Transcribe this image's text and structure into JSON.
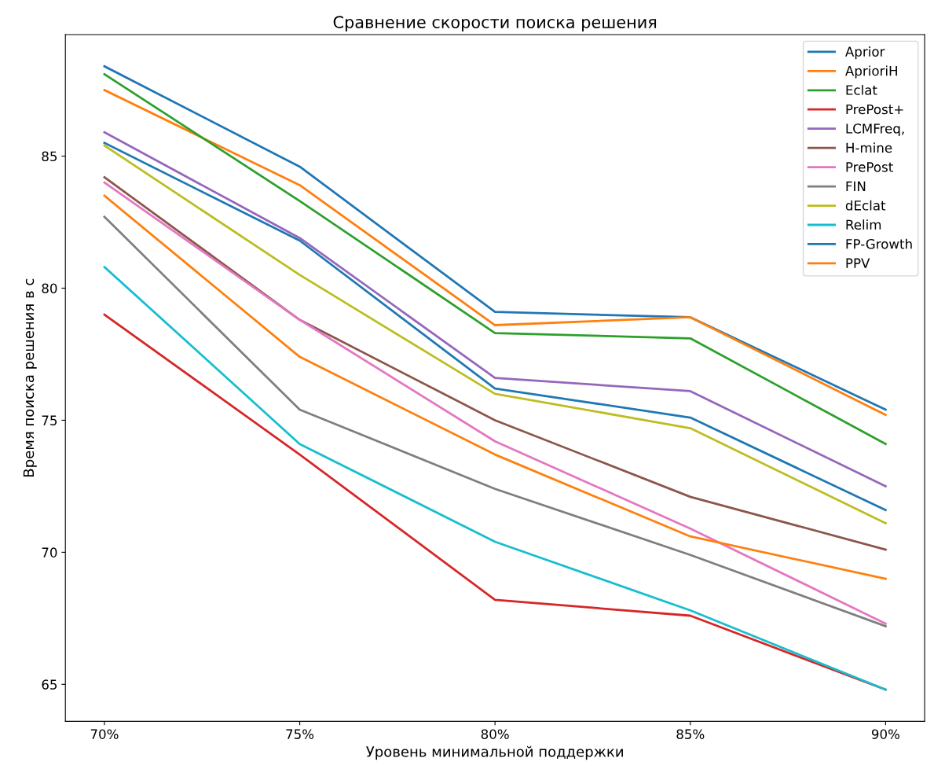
{
  "chart_data": {
    "type": "line",
    "title": "Сравнение скорости поиска решения",
    "xlabel": "Уровень минимальной поддержки",
    "ylabel": "Время поиска решения в с",
    "categories": [
      "70%",
      "75%",
      "80%",
      "85%",
      "90%"
    ],
    "ylim": [
      63.6,
      89.6
    ],
    "yticks": [
      65,
      70,
      75,
      80,
      85
    ],
    "grid": false,
    "legend": "top right",
    "series": [
      {
        "name": "Aprior",
        "color": "#1f77b4",
        "values": [
          88.4,
          84.6,
          79.1,
          78.9,
          75.4
        ]
      },
      {
        "name": "AprioriH",
        "color": "#ff7f0e",
        "values": [
          87.5,
          83.9,
          78.6,
          78.9,
          75.2
        ]
      },
      {
        "name": "Eclat",
        "color": "#2ca02c",
        "values": [
          88.1,
          83.3,
          78.3,
          78.1,
          74.1
        ]
      },
      {
        "name": "PrePost+",
        "color": "#d62728",
        "values": [
          79.0,
          73.7,
          68.2,
          67.6,
          64.8
        ]
      },
      {
        "name": "LCMFreq,",
        "color": "#9467bd",
        "values": [
          85.9,
          81.9,
          76.6,
          76.1,
          72.5
        ]
      },
      {
        "name": "H-mine",
        "color": "#8c564b",
        "values": [
          84.2,
          78.8,
          75.0,
          72.1,
          70.1
        ]
      },
      {
        "name": "PrePost",
        "color": "#e377c2",
        "values": [
          84.0,
          78.8,
          74.2,
          70.9,
          67.3
        ]
      },
      {
        "name": "FIN",
        "color": "#7f7f7f",
        "values": [
          82.7,
          75.4,
          72.4,
          69.9,
          67.2
        ]
      },
      {
        "name": "dEclat",
        "color": "#bcbd22",
        "values": [
          85.4,
          80.5,
          76.0,
          74.7,
          71.1
        ]
      },
      {
        "name": "Relim",
        "color": "#17becf",
        "values": [
          80.8,
          74.1,
          70.4,
          67.8,
          64.8
        ]
      },
      {
        "name": "FP-Growth",
        "color": "#1f78b3",
        "values": [
          85.5,
          81.8,
          76.2,
          75.1,
          71.6
        ]
      },
      {
        "name": "PPV",
        "color": "#fe800f",
        "values": [
          83.5,
          77.4,
          73.7,
          70.6,
          69.0
        ]
      }
    ]
  }
}
